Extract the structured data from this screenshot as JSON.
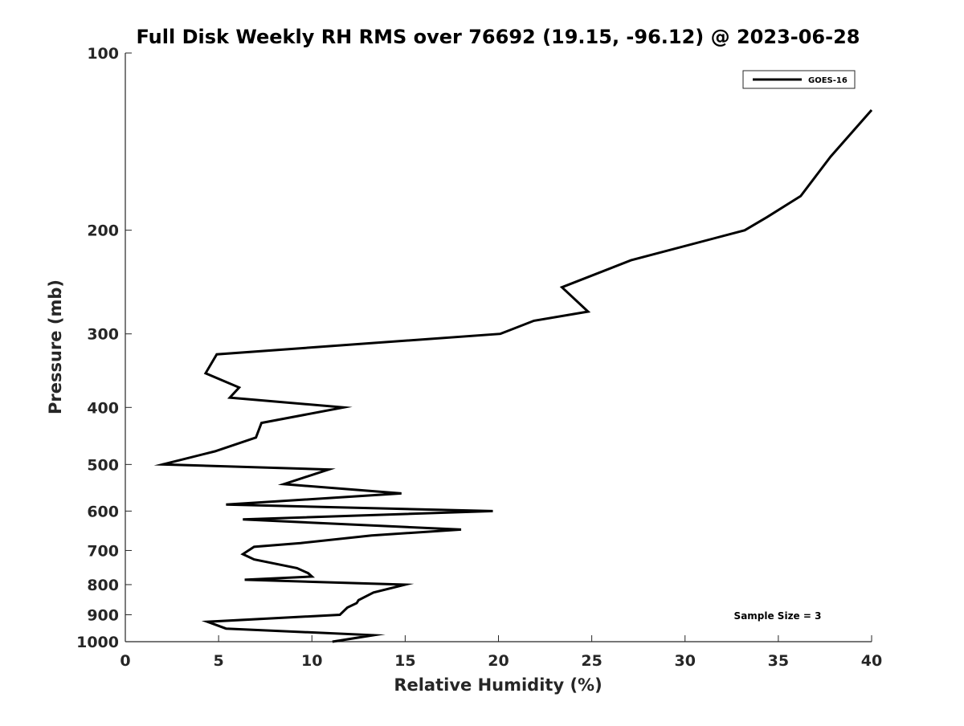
{
  "chart_data": {
    "type": "line",
    "title": "Full Disk Weekly RH RMS over 76692 (19.15, -96.12) @ 2023-06-28",
    "xlabel": "Relative Humidity (%)",
    "ylabel": "Pressure (mb)",
    "xlim": [
      0,
      40
    ],
    "ylim": [
      100,
      1000
    ],
    "y_scale": "log",
    "y_reversed": true,
    "x_ticks": [
      0,
      5,
      10,
      15,
      20,
      25,
      30,
      35,
      40
    ],
    "y_ticks": [
      100,
      200,
      300,
      400,
      500,
      600,
      700,
      800,
      900,
      1000
    ],
    "grid": false,
    "legend": "top-right",
    "series": [
      {
        "name": "GOES-16",
        "color": "#000000",
        "points": [
          [
            40.0,
            125
          ],
          [
            37.8,
            150
          ],
          [
            36.2,
            175
          ],
          [
            34.4,
            190
          ],
          [
            33.2,
            200
          ],
          [
            27.1,
            225
          ],
          [
            23.4,
            250
          ],
          [
            24.8,
            275
          ],
          [
            21.9,
            285
          ],
          [
            20.1,
            300
          ],
          [
            4.9,
            325
          ],
          [
            4.3,
            350
          ],
          [
            6.1,
            370
          ],
          [
            5.6,
            385
          ],
          [
            11.7,
            400
          ],
          [
            7.3,
            425
          ],
          [
            7.0,
            450
          ],
          [
            4.8,
            475
          ],
          [
            2.0,
            500
          ],
          [
            10.9,
            510
          ],
          [
            8.5,
            540
          ],
          [
            14.8,
            560
          ],
          [
            5.4,
            585
          ],
          [
            19.7,
            600
          ],
          [
            6.3,
            620
          ],
          [
            18.0,
            645
          ],
          [
            13.2,
            660
          ],
          [
            9.4,
            680
          ],
          [
            6.9,
            690
          ],
          [
            6.3,
            710
          ],
          [
            6.9,
            725
          ],
          [
            9.2,
            750
          ],
          [
            9.8,
            765
          ],
          [
            10.0,
            775
          ],
          [
            6.4,
            785
          ],
          [
            15.0,
            800
          ],
          [
            13.3,
            825
          ],
          [
            12.5,
            850
          ],
          [
            12.4,
            860
          ],
          [
            11.9,
            875
          ],
          [
            11.5,
            900
          ],
          [
            4.4,
            925
          ],
          [
            5.4,
            950
          ],
          [
            13.3,
            975
          ],
          [
            11.1,
            1000
          ]
        ]
      }
    ],
    "annotation": "Sample Size = 3"
  }
}
